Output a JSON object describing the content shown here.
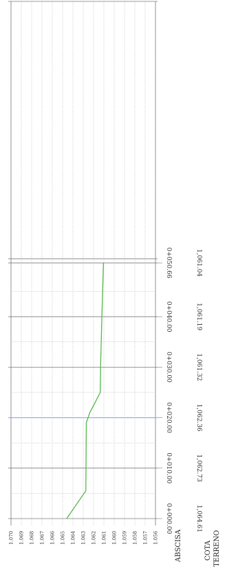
{
  "chart_data": {
    "type": "line",
    "title": "",
    "elevation_ticks": [
      "1.070",
      "1.069",
      "1.068",
      "1.067",
      "1.066",
      "1.065",
      "1.064",
      "1.063",
      "1.062",
      "1.061",
      "1.060",
      "1.059",
      "1.058",
      "1.057",
      "1.056"
    ],
    "ylim": [
      1056,
      1070
    ],
    "stations": [
      {
        "abscisa": "0+000.00",
        "cota": "1,064.61",
        "d": 0,
        "elev": 1064.61
      },
      {
        "abscisa": "0+010.00",
        "cota": "1,062.73",
        "d": 10,
        "elev": 1062.73
      },
      {
        "abscisa": "0+020.00",
        "cota": "1,062.36",
        "d": 20,
        "elev": 1062.36
      },
      {
        "abscisa": "0+030.00",
        "cota": "1,061.32",
        "d": 30,
        "elev": 1061.32
      },
      {
        "abscisa": "0+040.00",
        "cota": "1,061.19",
        "d": 40,
        "elev": 1061.19
      },
      {
        "abscisa": "0+050.66",
        "cota": "1,061.04",
        "d": 50.66,
        "elev": 1061.04
      }
    ],
    "series": [
      {
        "color": "#55b64a",
        "x": [
          0,
          5.5,
          10,
          19,
          21,
          25,
          30,
          40,
          50.66
        ],
        "y": [
          1064.61,
          1062.75,
          1062.73,
          1062.7,
          1062.36,
          1061.35,
          1061.32,
          1061.19,
          1061.04
        ]
      }
    ],
    "highlight_station": "0+020.00",
    "highlight_color": "#8fb0f0",
    "grid": true
  },
  "labels": {
    "abscisa": "ABSCISA",
    "cota": "COTA",
    "terreno": "TERRENO"
  }
}
